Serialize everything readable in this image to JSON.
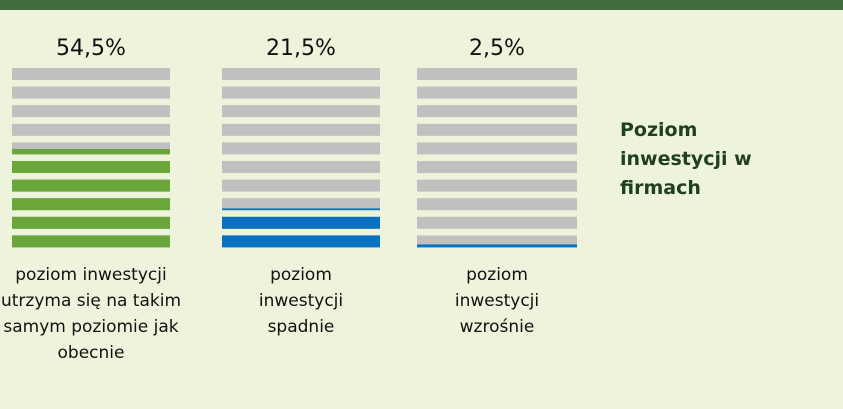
{
  "chart_data": {
    "type": "bar",
    "title": "Poziom inwestycji w firmach",
    "categories": [
      "poziom inwestycji utrzyma się na takim samym poziomie jak obecnie",
      "poziom inwestycji spadnie",
      "poziom inwestycji wzrośnie"
    ],
    "values": [
      54.5,
      21.5,
      2.5
    ],
    "value_labels": [
      "54,5%",
      "21,5%",
      "2,5%"
    ],
    "colors": [
      "#6aa63a",
      "#0a70c0",
      "#0a70c0"
    ],
    "ylim": [
      0,
      100
    ]
  }
}
